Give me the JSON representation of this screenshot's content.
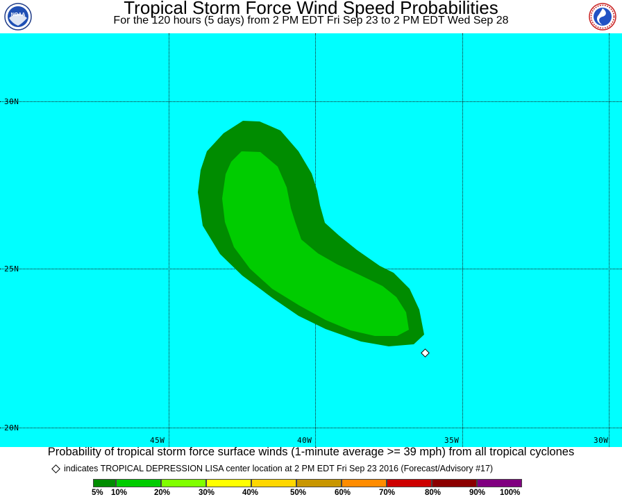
{
  "header": {
    "title": "Tropical Storm Force Wind Speed Probabilities",
    "subtitle": "For the 120 hours (5 days) from 2 PM EDT Fri Sep 23 to 2 PM EDT Wed Sep 28",
    "left_logo": {
      "icon": "noaa-logo-icon",
      "text": "NOAA"
    },
    "right_logo": {
      "icon": "nws-logo-icon"
    }
  },
  "map": {
    "background_color": "#00ffff",
    "latitude_labels": [
      "30N",
      "25N",
      "20N"
    ],
    "longitude_labels": [
      "45W",
      "40W",
      "35W",
      "30W"
    ],
    "storm_marker": {
      "icon": "diamond-icon",
      "lat": 22.4,
      "lon": 36.2
    },
    "probability_regions": [
      {
        "range": "5% - 10%",
        "color": "#008c00"
      },
      {
        "range": "10% - 20%",
        "color": "#00cc00"
      }
    ]
  },
  "footer": {
    "caption": "Probability of tropical storm force surface winds (1-minute average >= 39 mph) from all tropical cyclones",
    "marker_note": "indicates TROPICAL DEPRESSION LISA center location at 2 PM EDT Fri Sep 23 2016 (Forecast/Advisory #17)"
  },
  "legend": {
    "labels": [
      "5%",
      "10%",
      "20%",
      "30%",
      "40%",
      "50%",
      "60%",
      "70%",
      "80%",
      "90%",
      "100%"
    ],
    "colors": [
      "#008c00",
      "#00cc00",
      "#80ff00",
      "#ffff00",
      "#ffd700",
      "#c89600",
      "#ff8c00",
      "#cd0000",
      "#8b0000",
      "#800080"
    ]
  }
}
